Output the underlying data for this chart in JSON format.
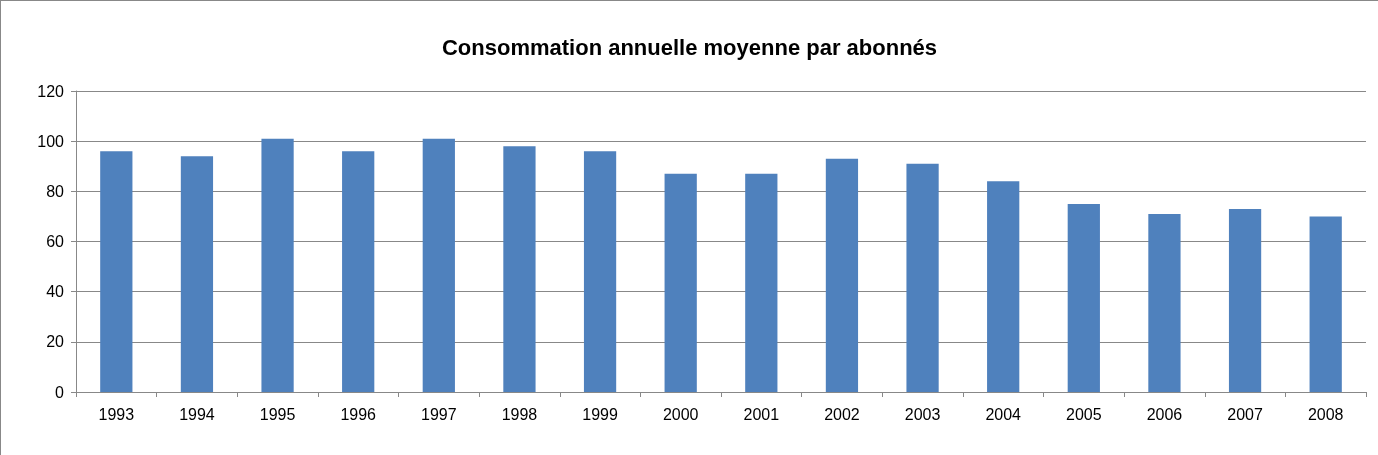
{
  "chart_data": {
    "type": "bar",
    "title": "Consommation annuelle moyenne par abonnés",
    "categories": [
      "1993",
      "1994",
      "1995",
      "1996",
      "1997",
      "1998",
      "1999",
      "2000",
      "2001",
      "2002",
      "2003",
      "2004",
      "2005",
      "2006",
      "2007",
      "2008"
    ],
    "values": [
      96,
      94,
      101,
      96,
      101,
      98,
      96,
      87,
      87,
      93,
      91,
      84,
      75,
      71,
      73,
      70
    ],
    "color": "#4f81bd",
    "ylim": [
      0,
      120
    ],
    "yticks": [
      0,
      20,
      40,
      60,
      80,
      100,
      120
    ],
    "grid": "y"
  }
}
